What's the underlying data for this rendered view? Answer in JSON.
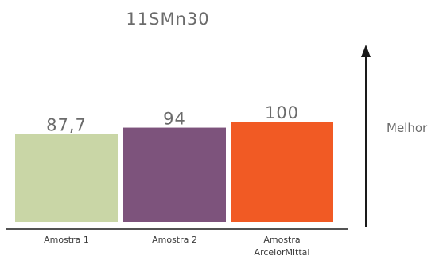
{
  "chart_data": {
    "type": "bar",
    "title": "11SMn30",
    "categories": [
      "Amostra 1",
      "Amostra 2",
      "Amostra ArcelorMittal"
    ],
    "category_lines": [
      [
        "Amostra 1"
      ],
      [
        "Amostra 2"
      ],
      [
        "Amostra",
        "ArcelorMittal"
      ]
    ],
    "values": [
      87.7,
      94,
      100
    ],
    "value_labels": [
      "87,7",
      "94",
      "100"
    ],
    "colors": [
      "#c9d6a6",
      "#7d537c",
      "#f15a24"
    ],
    "ylim": [
      0,
      100
    ],
    "grid": false,
    "arrow_label": "Melhor"
  }
}
